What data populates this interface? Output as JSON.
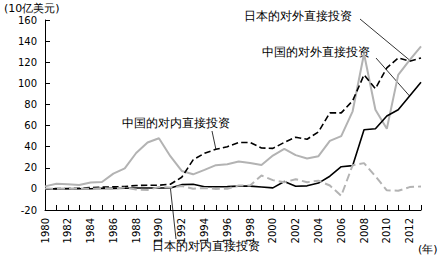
{
  "chart_data": {
    "type": "line",
    "y_label": "(10亿美元)",
    "x_label": "(年)",
    "categories": [
      "1980",
      null,
      "1982",
      null,
      "1984",
      null,
      "1986",
      null,
      "1988",
      null,
      "1990",
      null,
      "1992",
      null,
      "1994",
      null,
      "1996",
      null,
      "1998",
      null,
      "2000",
      null,
      "2002",
      null,
      "2004",
      null,
      "2006",
      null,
      "2008",
      null,
      "2010",
      null,
      "2012",
      null
    ],
    "series": [
      {
        "name": "日本的对外直接投资",
        "color": "#b3b3b3",
        "line_style": "solid",
        "values": [
          2.4,
          4.9,
          4.5,
          3.6,
          6,
          6.5,
          14.5,
          19.5,
          34,
          44,
          48,
          31,
          17,
          13.8,
          18,
          22.5,
          23.4,
          26,
          24.6,
          22.7,
          31.6,
          38,
          32,
          28.8,
          31,
          45.5,
          50,
          73.5,
          128,
          75,
          57,
          108,
          122,
          135
        ]
      },
      {
        "name": "中国的对外直接投资",
        "color": "#000000",
        "line_style": "solid",
        "values": [
          0,
          0,
          0.1,
          0.1,
          0.1,
          0.6,
          0.5,
          0.6,
          0.9,
          0.8,
          0.8,
          0.9,
          4,
          4.4,
          2,
          2,
          2.1,
          2.6,
          2.6,
          1.8,
          1,
          7,
          2.5,
          2.9,
          5.5,
          12,
          21,
          22,
          56,
          57,
          69,
          75,
          88,
          101
        ]
      },
      {
        "name": "中国的对内直接投资",
        "color": "#000000",
        "line_style": "dashed",
        "values": [
          0,
          0.3,
          0.4,
          0.6,
          1.3,
          1.7,
          1.9,
          2.3,
          3.2,
          3.4,
          3.5,
          4.4,
          11,
          27.5,
          33.8,
          37.5,
          40,
          44,
          44,
          38.8,
          38.4,
          44,
          49,
          47,
          54,
          72,
          72,
          83.5,
          108,
          95,
          114.7,
          124,
          121,
          124
        ]
      },
      {
        "name": "日本的对内直接投资",
        "color": "#b3b3b3",
        "line_style": "dashed",
        "values": [
          0.3,
          0.2,
          0.4,
          0.4,
          0,
          0.6,
          0.2,
          1.2,
          -0.5,
          -1,
          1.8,
          1.4,
          2.8,
          0.1,
          0.9,
          0,
          0.2,
          3.2,
          3.3,
          12.7,
          8.3,
          6.2,
          9.2,
          6.3,
          7.8,
          3.2,
          -6.5,
          22.5,
          24.4,
          11.9,
          -1.3,
          -1.8,
          1.7,
          2.3
        ]
      }
    ],
    "ylim": [
      -20,
      160
    ],
    "yticks": [
      -20,
      0,
      20,
      40,
      60,
      80,
      100,
      120,
      140,
      160
    ],
    "grid": false
  }
}
